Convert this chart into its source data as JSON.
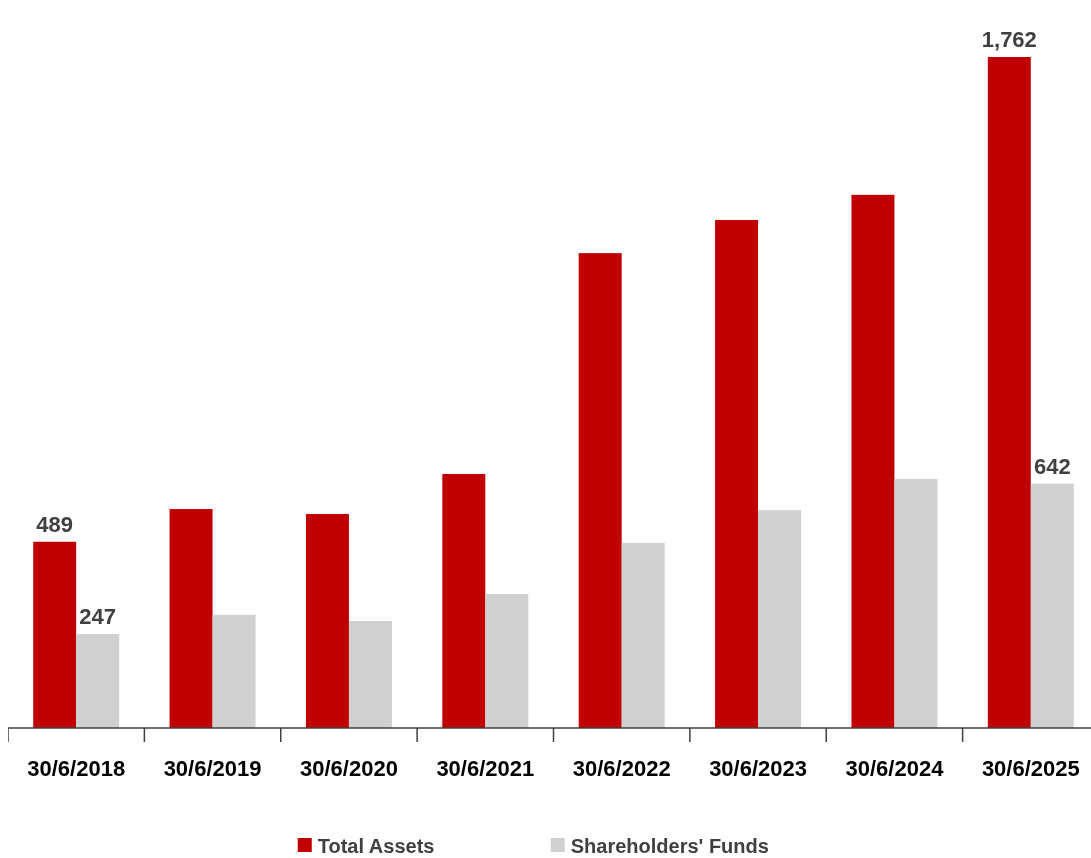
{
  "chart_data": {
    "type": "bar",
    "categories": [
      "30/6/2018",
      "30/6/2019",
      "30/6/2020",
      "30/6/2021",
      "30/6/2022",
      "30/6/2023",
      "30/6/2024",
      "30/6/2025"
    ],
    "series": [
      {
        "name": "Total Assets",
        "color": "#c00000",
        "values": [
          489,
          575,
          562,
          667,
          1247,
          1334,
          1400,
          1762
        ],
        "value_labels": [
          "489",
          null,
          null,
          null,
          null,
          null,
          null,
          "1,762"
        ]
      },
      {
        "name": "Shareholders' Funds",
        "color": "#d0d0d0",
        "values": [
          247,
          297,
          281,
          352,
          486,
          572,
          654,
          642
        ],
        "value_labels": [
          "247",
          null,
          null,
          null,
          null,
          null,
          null,
          "642"
        ]
      }
    ],
    "legend": "bottom"
  }
}
